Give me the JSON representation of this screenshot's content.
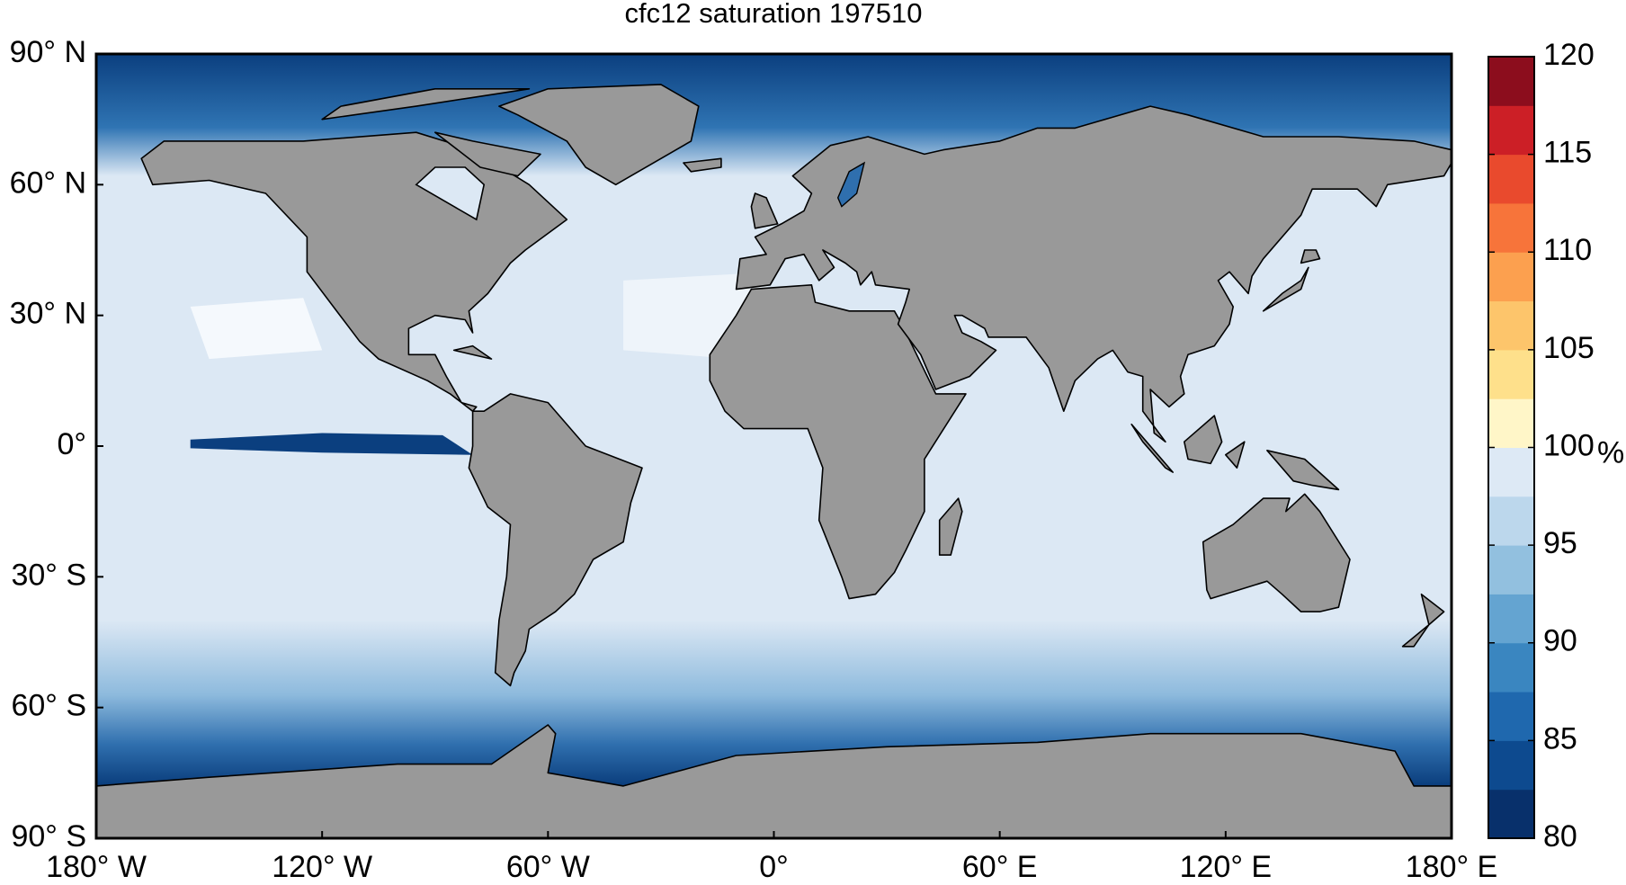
{
  "chart_data": {
    "type": "map",
    "title": "cfc12 saturation 197510",
    "xlim": [
      -180,
      180
    ],
    "ylim": [
      -90,
      90
    ],
    "xticks": [
      {
        "value": -180,
        "label": "180° W"
      },
      {
        "value": -120,
        "label": "120° W"
      },
      {
        "value": -60,
        "label": "60° W"
      },
      {
        "value": 0,
        "label": "0°"
      },
      {
        "value": 60,
        "label": "60° E"
      },
      {
        "value": 120,
        "label": "120° E"
      },
      {
        "value": 180,
        "label": "180° E"
      }
    ],
    "yticks": [
      {
        "value": -90,
        "label": "90° S"
      },
      {
        "value": -60,
        "label": "60° S"
      },
      {
        "value": -30,
        "label": "30° S"
      },
      {
        "value": 0,
        "label": "0°"
      },
      {
        "value": 30,
        "label": "30° N"
      },
      {
        "value": 60,
        "label": "60° N"
      },
      {
        "value": 90,
        "label": "90° N"
      }
    ],
    "colorbar": {
      "label": "%",
      "lim": [
        80,
        120
      ],
      "ticks": [
        80,
        85,
        90,
        95,
        100,
        105,
        110,
        115,
        120
      ],
      "colors": [
        "#08306b",
        "#0d4a8f",
        "#1f68ae",
        "#3a86c0",
        "#64a4d1",
        "#92c0df",
        "#bcd7ec",
        "#dde9f5",
        "#fff6c8",
        "#fee08b",
        "#fdc56b",
        "#fca04f",
        "#f7743a",
        "#e94a2d",
        "#cc1f26",
        "#8c0d1d"
      ]
    }
  }
}
